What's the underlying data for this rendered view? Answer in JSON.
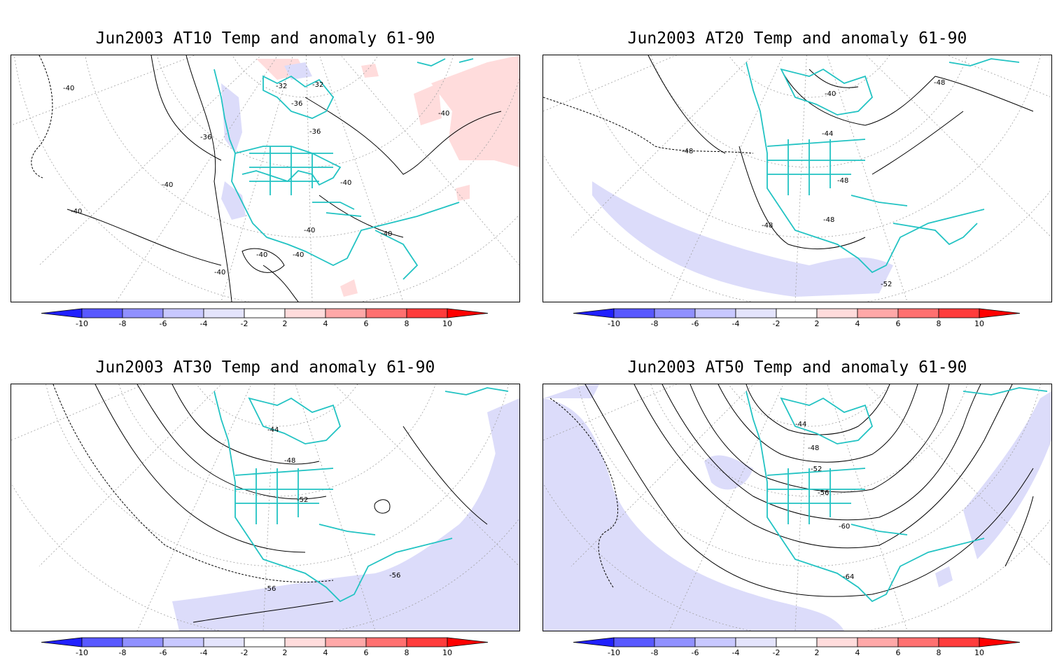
{
  "panels": [
    {
      "title": "Jun2003 AT10 Temp and anomaly 61-90",
      "contour_labels": [
        "-40",
        "-32",
        "-32",
        "-36",
        "-36",
        "-36",
        "-40",
        "-40",
        "-40",
        "-40",
        "-40",
        "-40",
        "-40",
        "-40",
        "-40"
      ]
    },
    {
      "title": "Jun2003 AT20 Temp and anomaly 61-90",
      "contour_labels": [
        "-40",
        "-44",
        "-48",
        "-48",
        "-48",
        "-48",
        "-48",
        "-52"
      ]
    },
    {
      "title": "Jun2003 AT30 Temp and anomaly 61-90",
      "contour_labels": [
        "-44",
        "-48",
        "-52",
        "-56",
        "-56"
      ]
    },
    {
      "title": "Jun2003 AT50 Temp and anomaly 61-90",
      "contour_labels": [
        "-44",
        "-48",
        "-52",
        "-56",
        "-60",
        "-64"
      ]
    }
  ],
  "colorbar": {
    "labels": [
      "-10",
      "-8",
      "-6",
      "-4",
      "-2",
      "2",
      "4",
      "6",
      "8",
      "10"
    ],
    "colors": [
      "#2020ff",
      "#5858ff",
      "#9090ff",
      "#c8c8ff",
      "#e4e4fc",
      "#ffffff",
      "#ffdcdc",
      "#ffa8a8",
      "#ff7070",
      "#ff3c3c",
      "#ff0000"
    ]
  },
  "colors": {
    "coastline": "#22c3c3",
    "negative_anomaly_fill": "#dcdcfa",
    "positive_anomaly_fill": "#ffdcdc",
    "contour": "#000000",
    "grid": "#a0a0a0"
  }
}
